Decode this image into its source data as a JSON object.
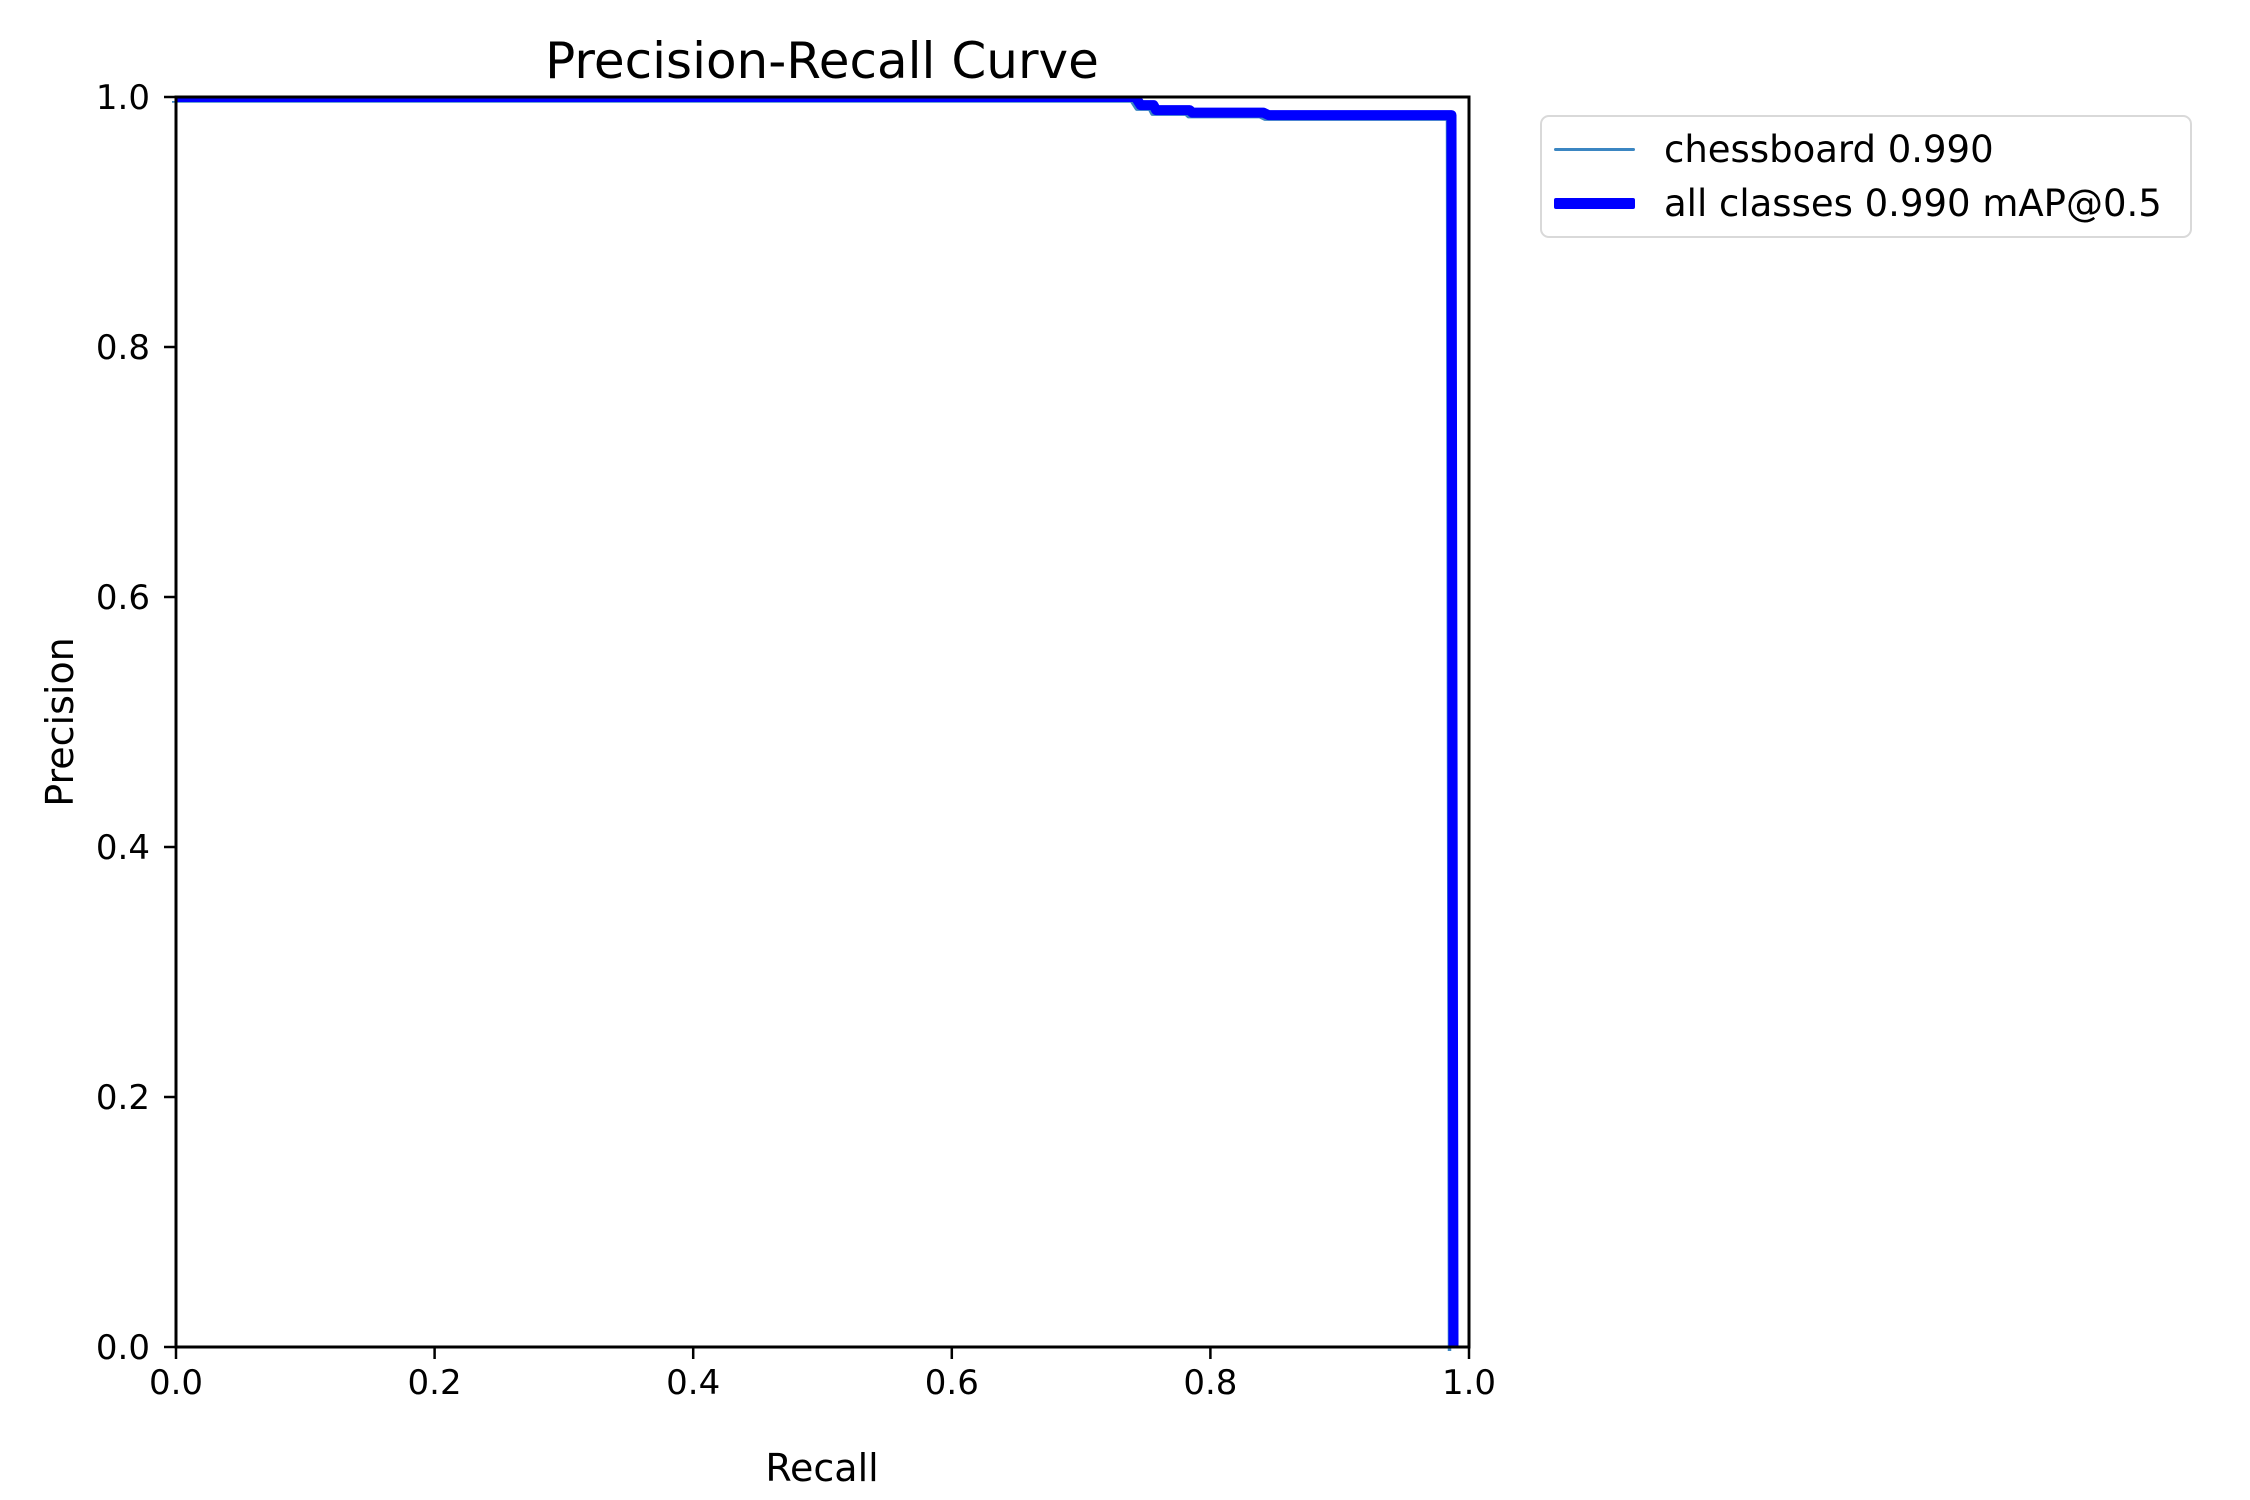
{
  "chart_data": {
    "type": "line",
    "title": "Precision-Recall Curve",
    "xlabel": "Recall",
    "ylabel": "Precision",
    "xlim": [
      0.0,
      1.0
    ],
    "ylim": [
      0.0,
      1.0
    ],
    "xticks": [
      "0.0",
      "0.2",
      "0.4",
      "0.6",
      "0.8",
      "1.0"
    ],
    "yticks": [
      "0.0",
      "0.2",
      "0.4",
      "0.6",
      "0.8",
      "1.0"
    ],
    "grid": false,
    "background_color": "#ffffff",
    "spine_color": "#000000",
    "legend": {
      "position": "outside-upper-right",
      "border_color": "#d9d9d9"
    },
    "series": [
      {
        "name": "chessboard 0.990",
        "ap": 0.99,
        "color": "#3b86c2",
        "width": 3.5,
        "points": [
          [
            0.0,
            1.0
          ],
          [
            0.742,
            1.0
          ],
          [
            0.746,
            0.9935
          ],
          [
            0.756,
            0.9935
          ],
          [
            0.758,
            0.9895
          ],
          [
            0.784,
            0.9895
          ],
          [
            0.786,
            0.9875
          ],
          [
            0.841,
            0.9875
          ],
          [
            0.845,
            0.9855
          ],
          [
            0.9865,
            0.9855
          ],
          [
            0.988,
            0.0
          ]
        ]
      },
      {
        "name": "all classes 0.990 mAP@0.5",
        "map_at_05": 0.99,
        "color": "#0000ff",
        "width": 10,
        "points": [
          [
            0.0,
            1.0
          ],
          [
            0.742,
            1.0
          ],
          [
            0.746,
            0.9935
          ],
          [
            0.756,
            0.9935
          ],
          [
            0.758,
            0.9895
          ],
          [
            0.784,
            0.9895
          ],
          [
            0.786,
            0.9875
          ],
          [
            0.841,
            0.9875
          ],
          [
            0.845,
            0.9855
          ],
          [
            0.9865,
            0.9855
          ],
          [
            0.988,
            0.0
          ]
        ]
      }
    ]
  }
}
